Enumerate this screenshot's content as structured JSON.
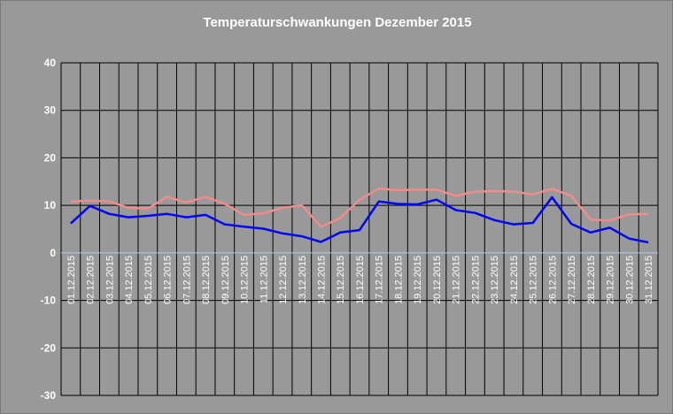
{
  "chart_data": {
    "type": "line",
    "title": "Temperaturschwankungen Dezember 2015",
    "xlabel": "",
    "ylabel": "",
    "ylim": [
      -30,
      40
    ],
    "yticks": [
      40,
      30,
      20,
      10,
      0,
      -10,
      -20,
      -30
    ],
    "grid": true,
    "legend": "none",
    "colors": {
      "background": "#999999",
      "grid": "#000000",
      "zero_line": "#b4c8e6"
    },
    "categories": [
      "01.12.2015",
      "02.12.2015",
      "03.12.2015",
      "04.12.2015",
      "05.12.2015",
      "06.12.2015",
      "07.12.2015",
      "08.12.2015",
      "09.12.2015",
      "10.12.2015",
      "11.12.2015",
      "12.12.2015",
      "13.12.2015",
      "14.12.2015",
      "15.12.2015",
      "16.12.2015",
      "17.12.2015",
      "18.12.2015",
      "19.12.2015",
      "20.12.2015",
      "21.12.2015",
      "22.12.2015",
      "23.12.2015",
      "24.12.2015",
      "25.12.2015",
      "26.12.2015",
      "27.12.2015",
      "28.12.2015",
      "29.12.2015",
      "30.12.2015",
      "31.12.2015"
    ],
    "series": [
      {
        "color": "#f08c8c",
        "values": [
          10.8,
          11.0,
          10.8,
          9.5,
          9.3,
          11.8,
          10.6,
          11.8,
          10.3,
          8.0,
          8.3,
          9.5,
          10.0,
          5.5,
          7.3,
          11.2,
          13.5,
          13.2,
          13.3,
          13.3,
          12.0,
          12.9,
          13.0,
          12.9,
          12.3,
          13.5,
          12.0,
          7.0,
          6.8,
          8.1,
          8.2
        ]
      },
      {
        "color": "#0000ff",
        "values": [
          6.2,
          9.9,
          8.2,
          7.5,
          7.8,
          8.2,
          7.5,
          8.0,
          6.0,
          5.5,
          5.1,
          4.1,
          3.5,
          2.3,
          4.3,
          4.8,
          10.8,
          10.3,
          10.2,
          11.2,
          9.0,
          8.4,
          6.9,
          6.0,
          6.3,
          11.7,
          6.1,
          4.3,
          5.3,
          3.0,
          2.2
        ]
      }
    ]
  }
}
